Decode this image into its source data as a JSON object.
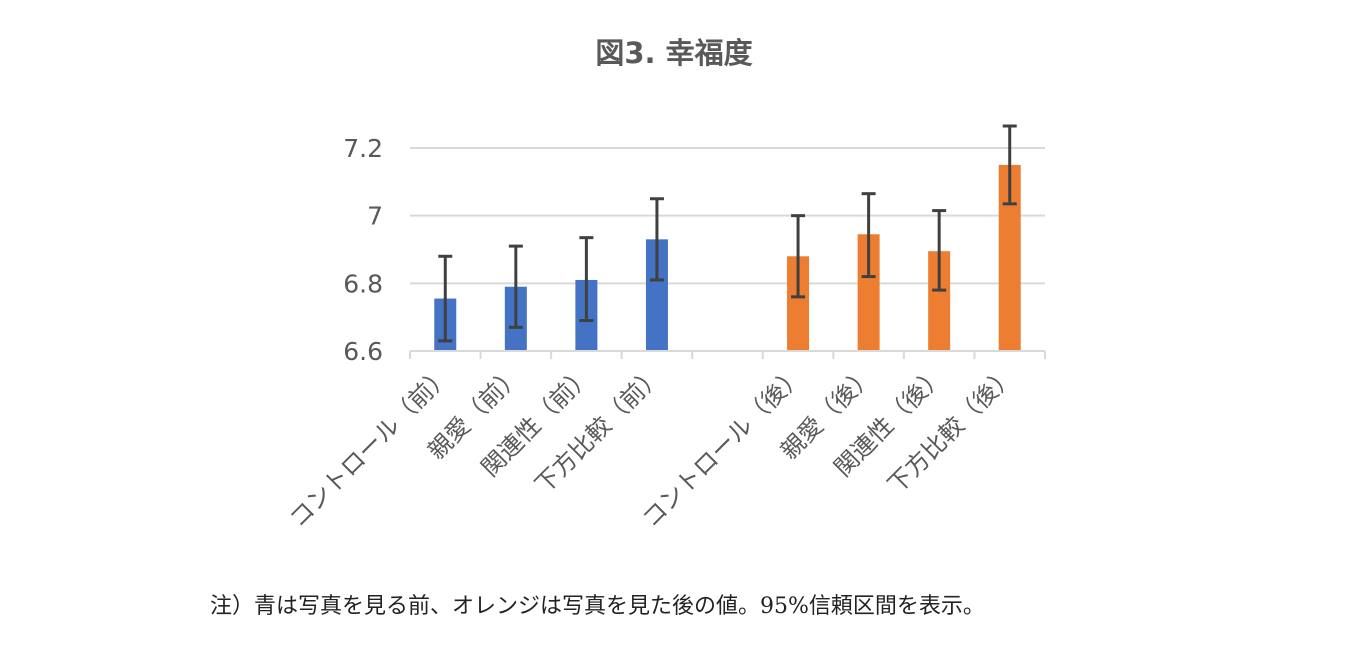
{
  "chart_data": {
    "type": "bar",
    "title": "図3. 幸福度",
    "categories": [
      "コントロール（前）",
      "親愛（前）",
      "関連性（前）",
      "下方比較（前）",
      "",
      "コントロール（後）",
      "親愛（後）",
      "関連性（後）",
      "下方比較（後）"
    ],
    "values": [
      6.755,
      6.79,
      6.81,
      6.93,
      null,
      6.88,
      6.945,
      6.895,
      7.15
    ],
    "error_low": [
      6.63,
      6.67,
      6.69,
      6.81,
      null,
      6.76,
      6.82,
      6.78,
      7.035
    ],
    "error_high": [
      6.88,
      6.91,
      6.935,
      7.05,
      null,
      7.0,
      7.065,
      7.015,
      7.265
    ],
    "bar_colors": [
      "#4472c4",
      "#4472c4",
      "#4472c4",
      "#4472c4",
      null,
      "#ed7d31",
      "#ed7d31",
      "#ed7d31",
      "#ed7d31"
    ],
    "ylim": [
      6.6,
      7.2
    ],
    "yticks": [
      "6.6",
      "6.8",
      "7",
      "7.2"
    ],
    "grid": true,
    "legend": "none"
  },
  "note": "注）青は写真を見る前、オレンジは写真を見た後の値。95%信頼区間を表示。"
}
